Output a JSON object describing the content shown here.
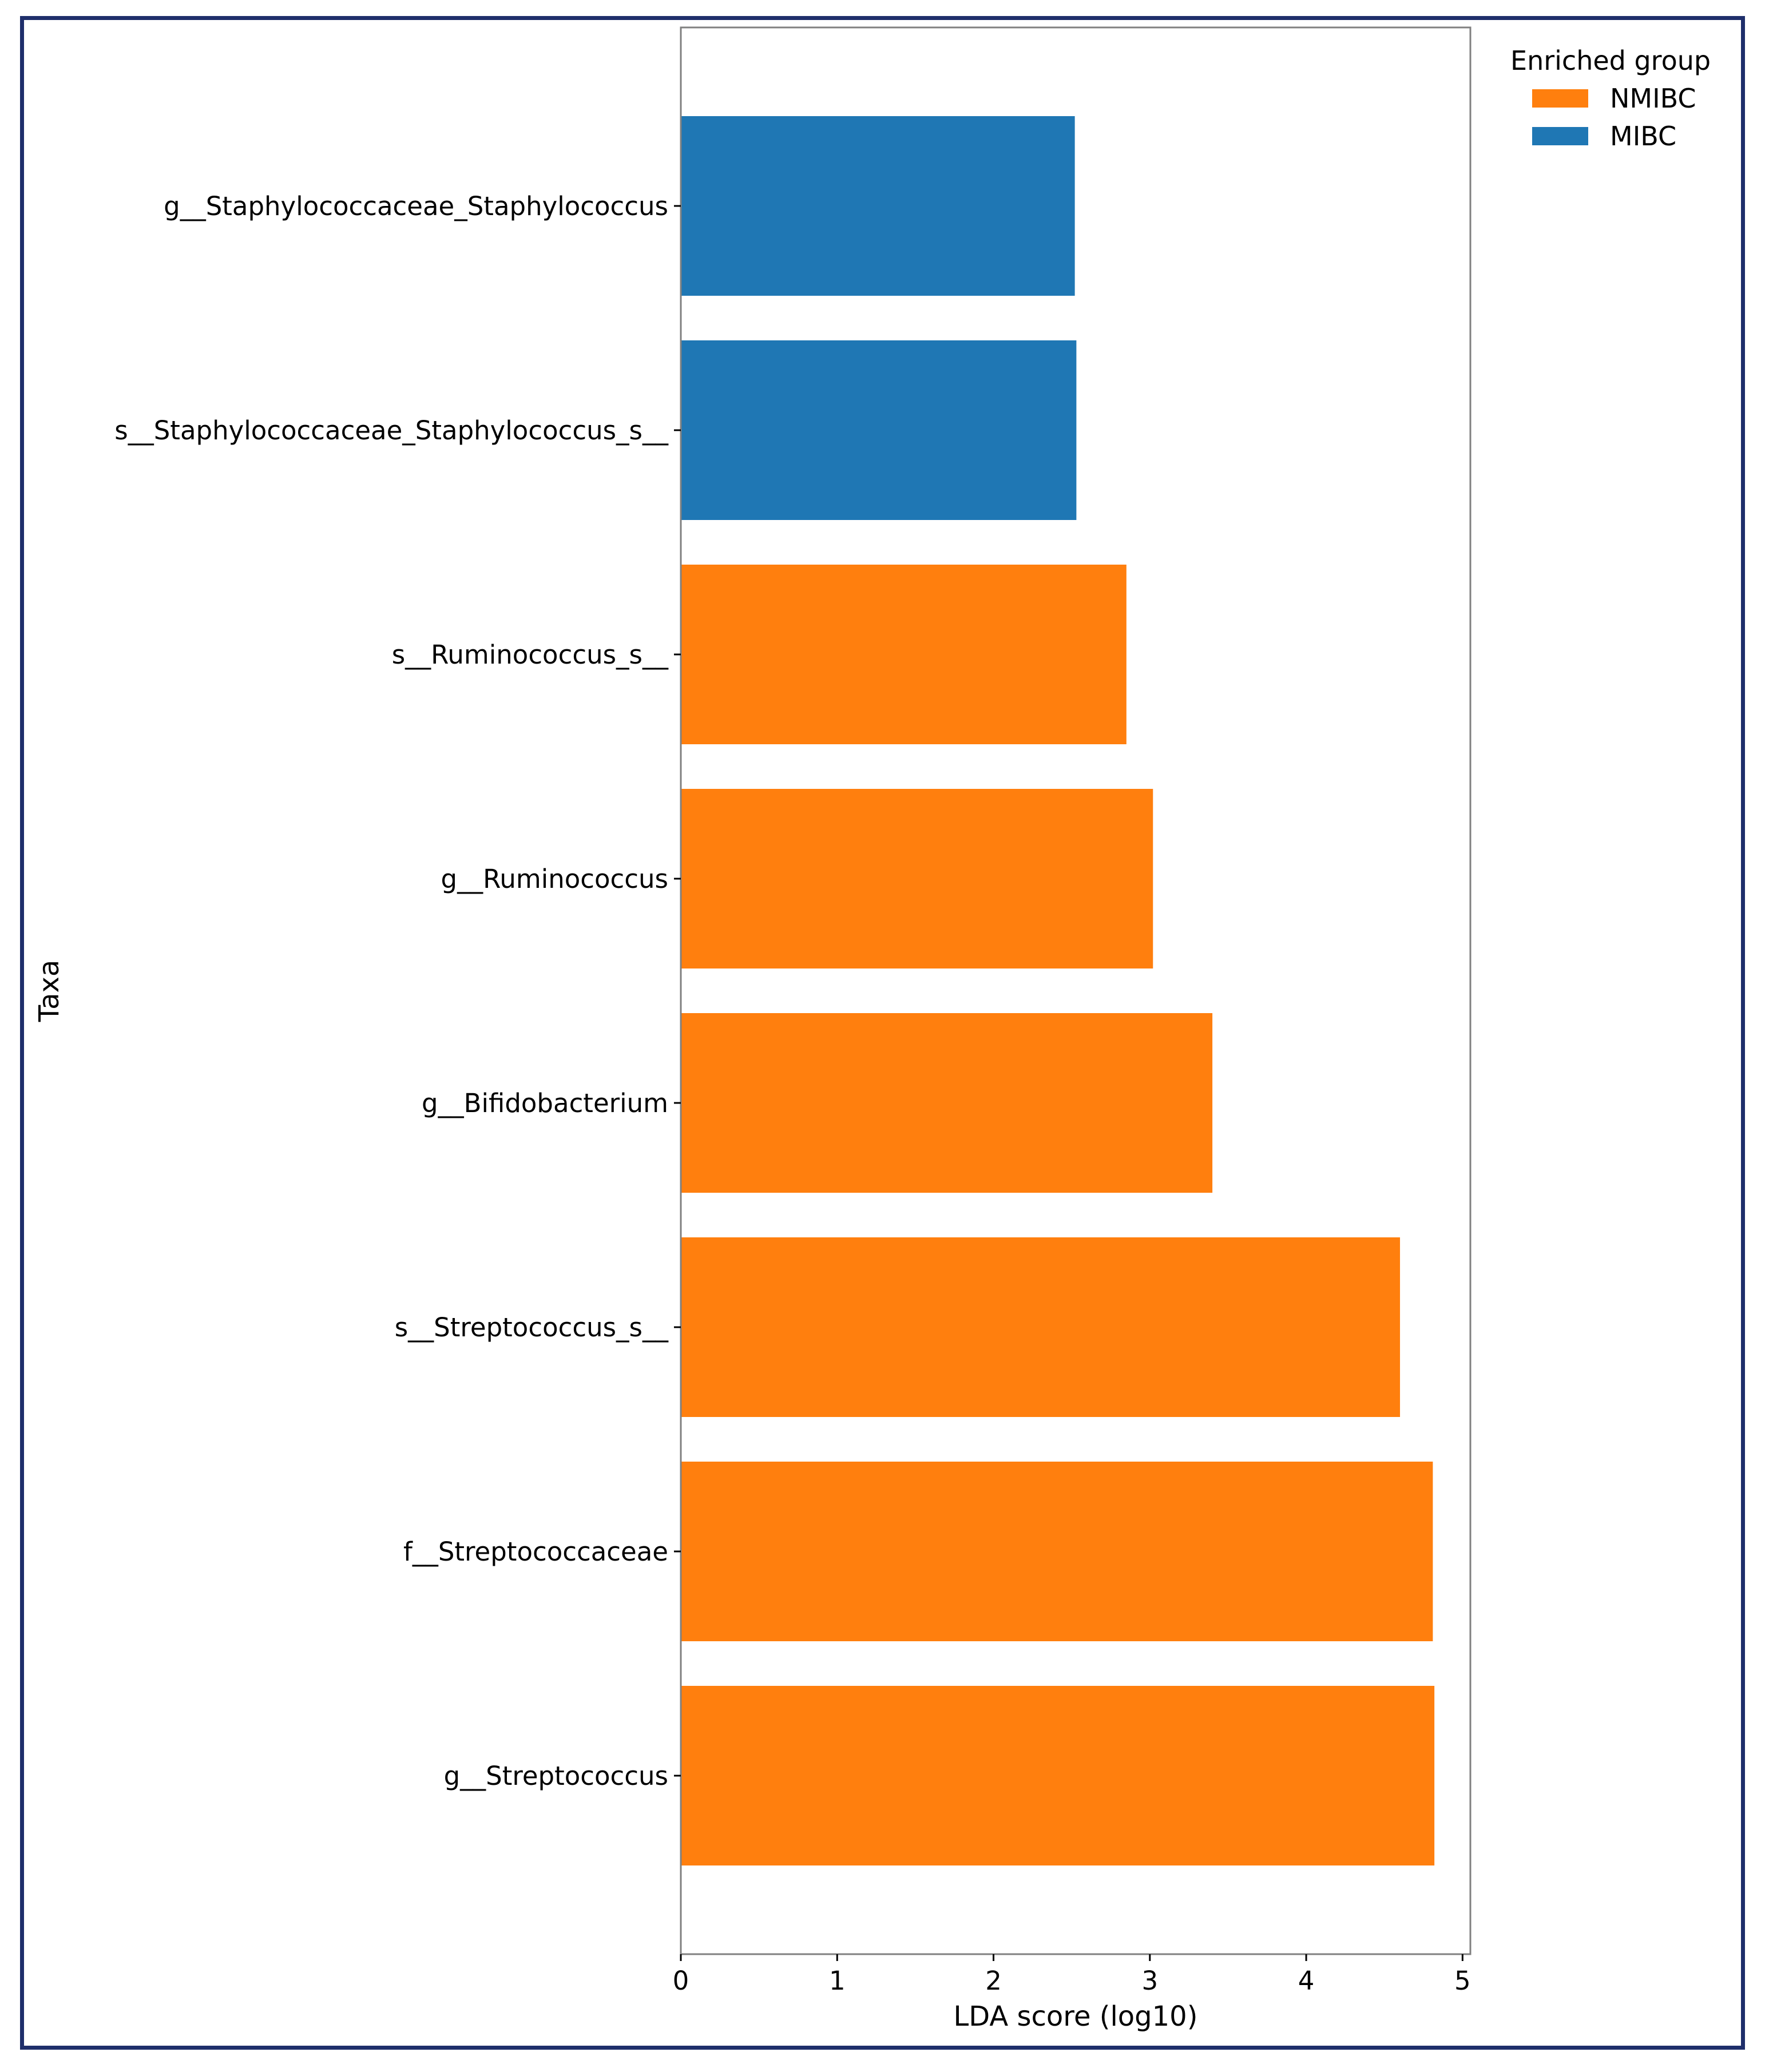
{
  "chart_data": {
    "type": "bar",
    "orientation": "horizontal",
    "xlabel": "LDA score (log10)",
    "ylabel": "Taxa",
    "xlim": [
      0,
      5.05
    ],
    "xticks": [
      0,
      1,
      2,
      3,
      4,
      5
    ],
    "grid": false,
    "legend": {
      "title": "Enriched group",
      "placement": "top-right",
      "entries": [
        {
          "name": "NMIBC",
          "color": "#ff7f0e"
        },
        {
          "name": "MIBC",
          "color": "#1f77b4"
        }
      ]
    },
    "categories": [
      "g__Staphylococcaceae_Staphylococcus",
      "s__Staphylococcaceae_Staphylococcus_s__",
      "s__Ruminococcus_s__",
      "g__Ruminococcus",
      "g__Bifidobacterium",
      "s__Streptococcus_s__",
      "f__Streptococcaceae",
      "g__Streptococcus"
    ],
    "values": [
      2.52,
      2.53,
      2.85,
      3.02,
      3.4,
      4.6,
      4.81,
      4.82
    ],
    "groups": [
      "MIBC",
      "MIBC",
      "NMIBC",
      "NMIBC",
      "NMIBC",
      "NMIBC",
      "NMIBC",
      "NMIBC"
    ],
    "colors": {
      "NMIBC": "#ff7f0e",
      "MIBC": "#1f77b4"
    }
  }
}
